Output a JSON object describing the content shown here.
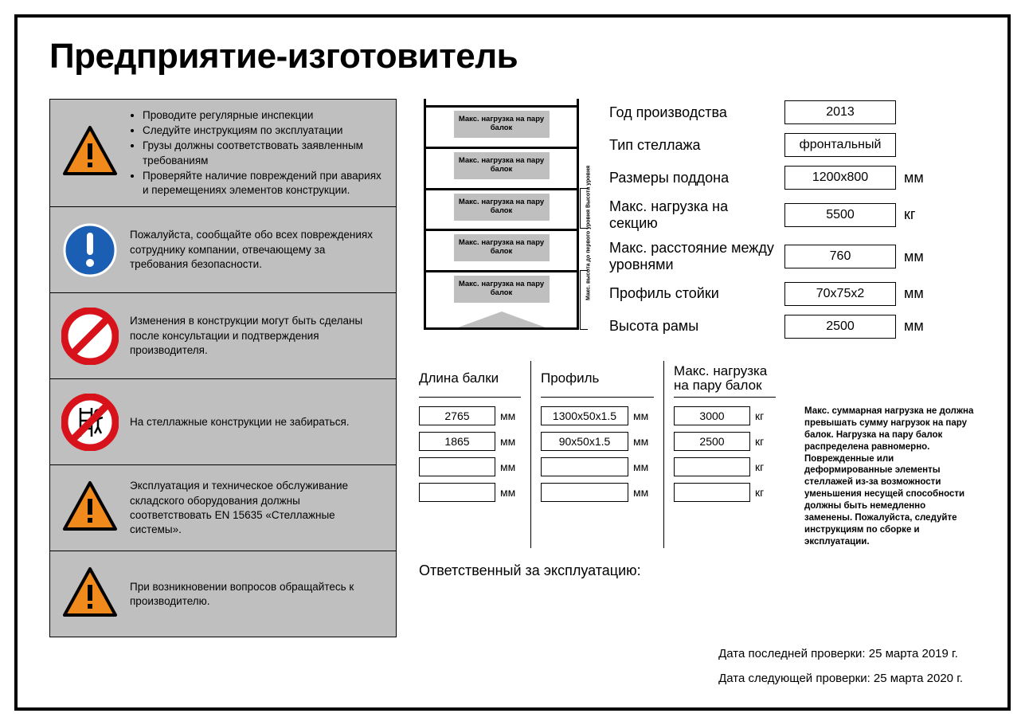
{
  "title": "Предприятие-изготовитель",
  "colors": {
    "panel_bg": "#bfbfbf",
    "border": "#000000",
    "warn_triangle_fill": "#f08a1d",
    "mandatory_blue": "#1b5fb4",
    "prohibit_red": "#d8121b"
  },
  "warnings": [
    {
      "icon": "warning-triangle",
      "lines": [
        "Проводите регулярные инспекции",
        "Следуйте инструкциям по эксплуатации",
        "Грузы должны соответствовать заявленным требованиям",
        "Проверяйте наличие повреждений при авариях и перемещениях элементов конструкции."
      ],
      "bulleted": true
    },
    {
      "icon": "mandatory-exclaim",
      "text": "Пожалуйста, сообщайте обо всех повреждениях сотруднику компании, отвечающему за требования безопасности."
    },
    {
      "icon": "prohibit-slash",
      "text": "Изменения в конструкции могут быть сделаны после консультации и подтверждения производителя."
    },
    {
      "icon": "prohibit-climb",
      "text": "На стеллажные конструкции не забираться."
    },
    {
      "icon": "warning-triangle",
      "text": "Эксплуатация и техническое обслуживание складского оборудования должны соответствовать EN 15635 «Стеллажные системы»."
    },
    {
      "icon": "warning-triangle",
      "text": "При возникновении вопросов обращайтесь к производителю."
    }
  ],
  "rack": {
    "level_label": "Макс. нагрузка на пару балок",
    "levels": 5,
    "side_label_top": "Высота уровня",
    "side_label_bottom": "Макс. высота до первого уровня"
  },
  "specs": [
    {
      "label": "Год производства",
      "value": "2013",
      "unit": ""
    },
    {
      "label": "Тип стеллажа",
      "value": "фронтальный",
      "unit": ""
    },
    {
      "label": "Размеры поддона",
      "value": "1200x800",
      "unit": "мм"
    },
    {
      "label": "Макс. нагрузка на секцию",
      "value": "5500",
      "unit": "кг"
    },
    {
      "label": "Макс. расстояние между уровнями",
      "value": "760",
      "unit": "мм"
    },
    {
      "label": "Профиль стойки",
      "value": "70x75x2",
      "unit": "мм"
    },
    {
      "label": "Высота рамы",
      "value": "2500",
      "unit": "мм"
    }
  ],
  "beam_table": {
    "columns": [
      {
        "header": "Длина балки",
        "unit": "мм",
        "values": [
          "2765",
          "1865",
          "",
          ""
        ]
      },
      {
        "header": "Профиль",
        "unit": "мм",
        "values": [
          "1300x50x1.5",
          "90x50x1.5",
          "",
          ""
        ],
        "wide": true
      },
      {
        "header": "Макс. нагрузка\nна пару балок",
        "unit": "кг",
        "values": [
          "3000",
          "2500",
          "",
          ""
        ]
      }
    ]
  },
  "note": "Макс. суммарная нагрузка не должна превышать сумму нагрузок на пару балок. Нагрузка на пару балок распределена равномерно. Поврежденные или деформированные элементы стеллажей из-за возможности уменьшения несущей способности должны быть немедленно заменены. Пожалуйста, следуйте инструкциям по сборке и эксплуатации.",
  "responsible_label": "Ответственный за эксплуатацию:",
  "last_check": "Дата последней проверки: 25 марта 2019 г.",
  "next_check": "Дата следующей проверки: 25 марта 2020 г."
}
